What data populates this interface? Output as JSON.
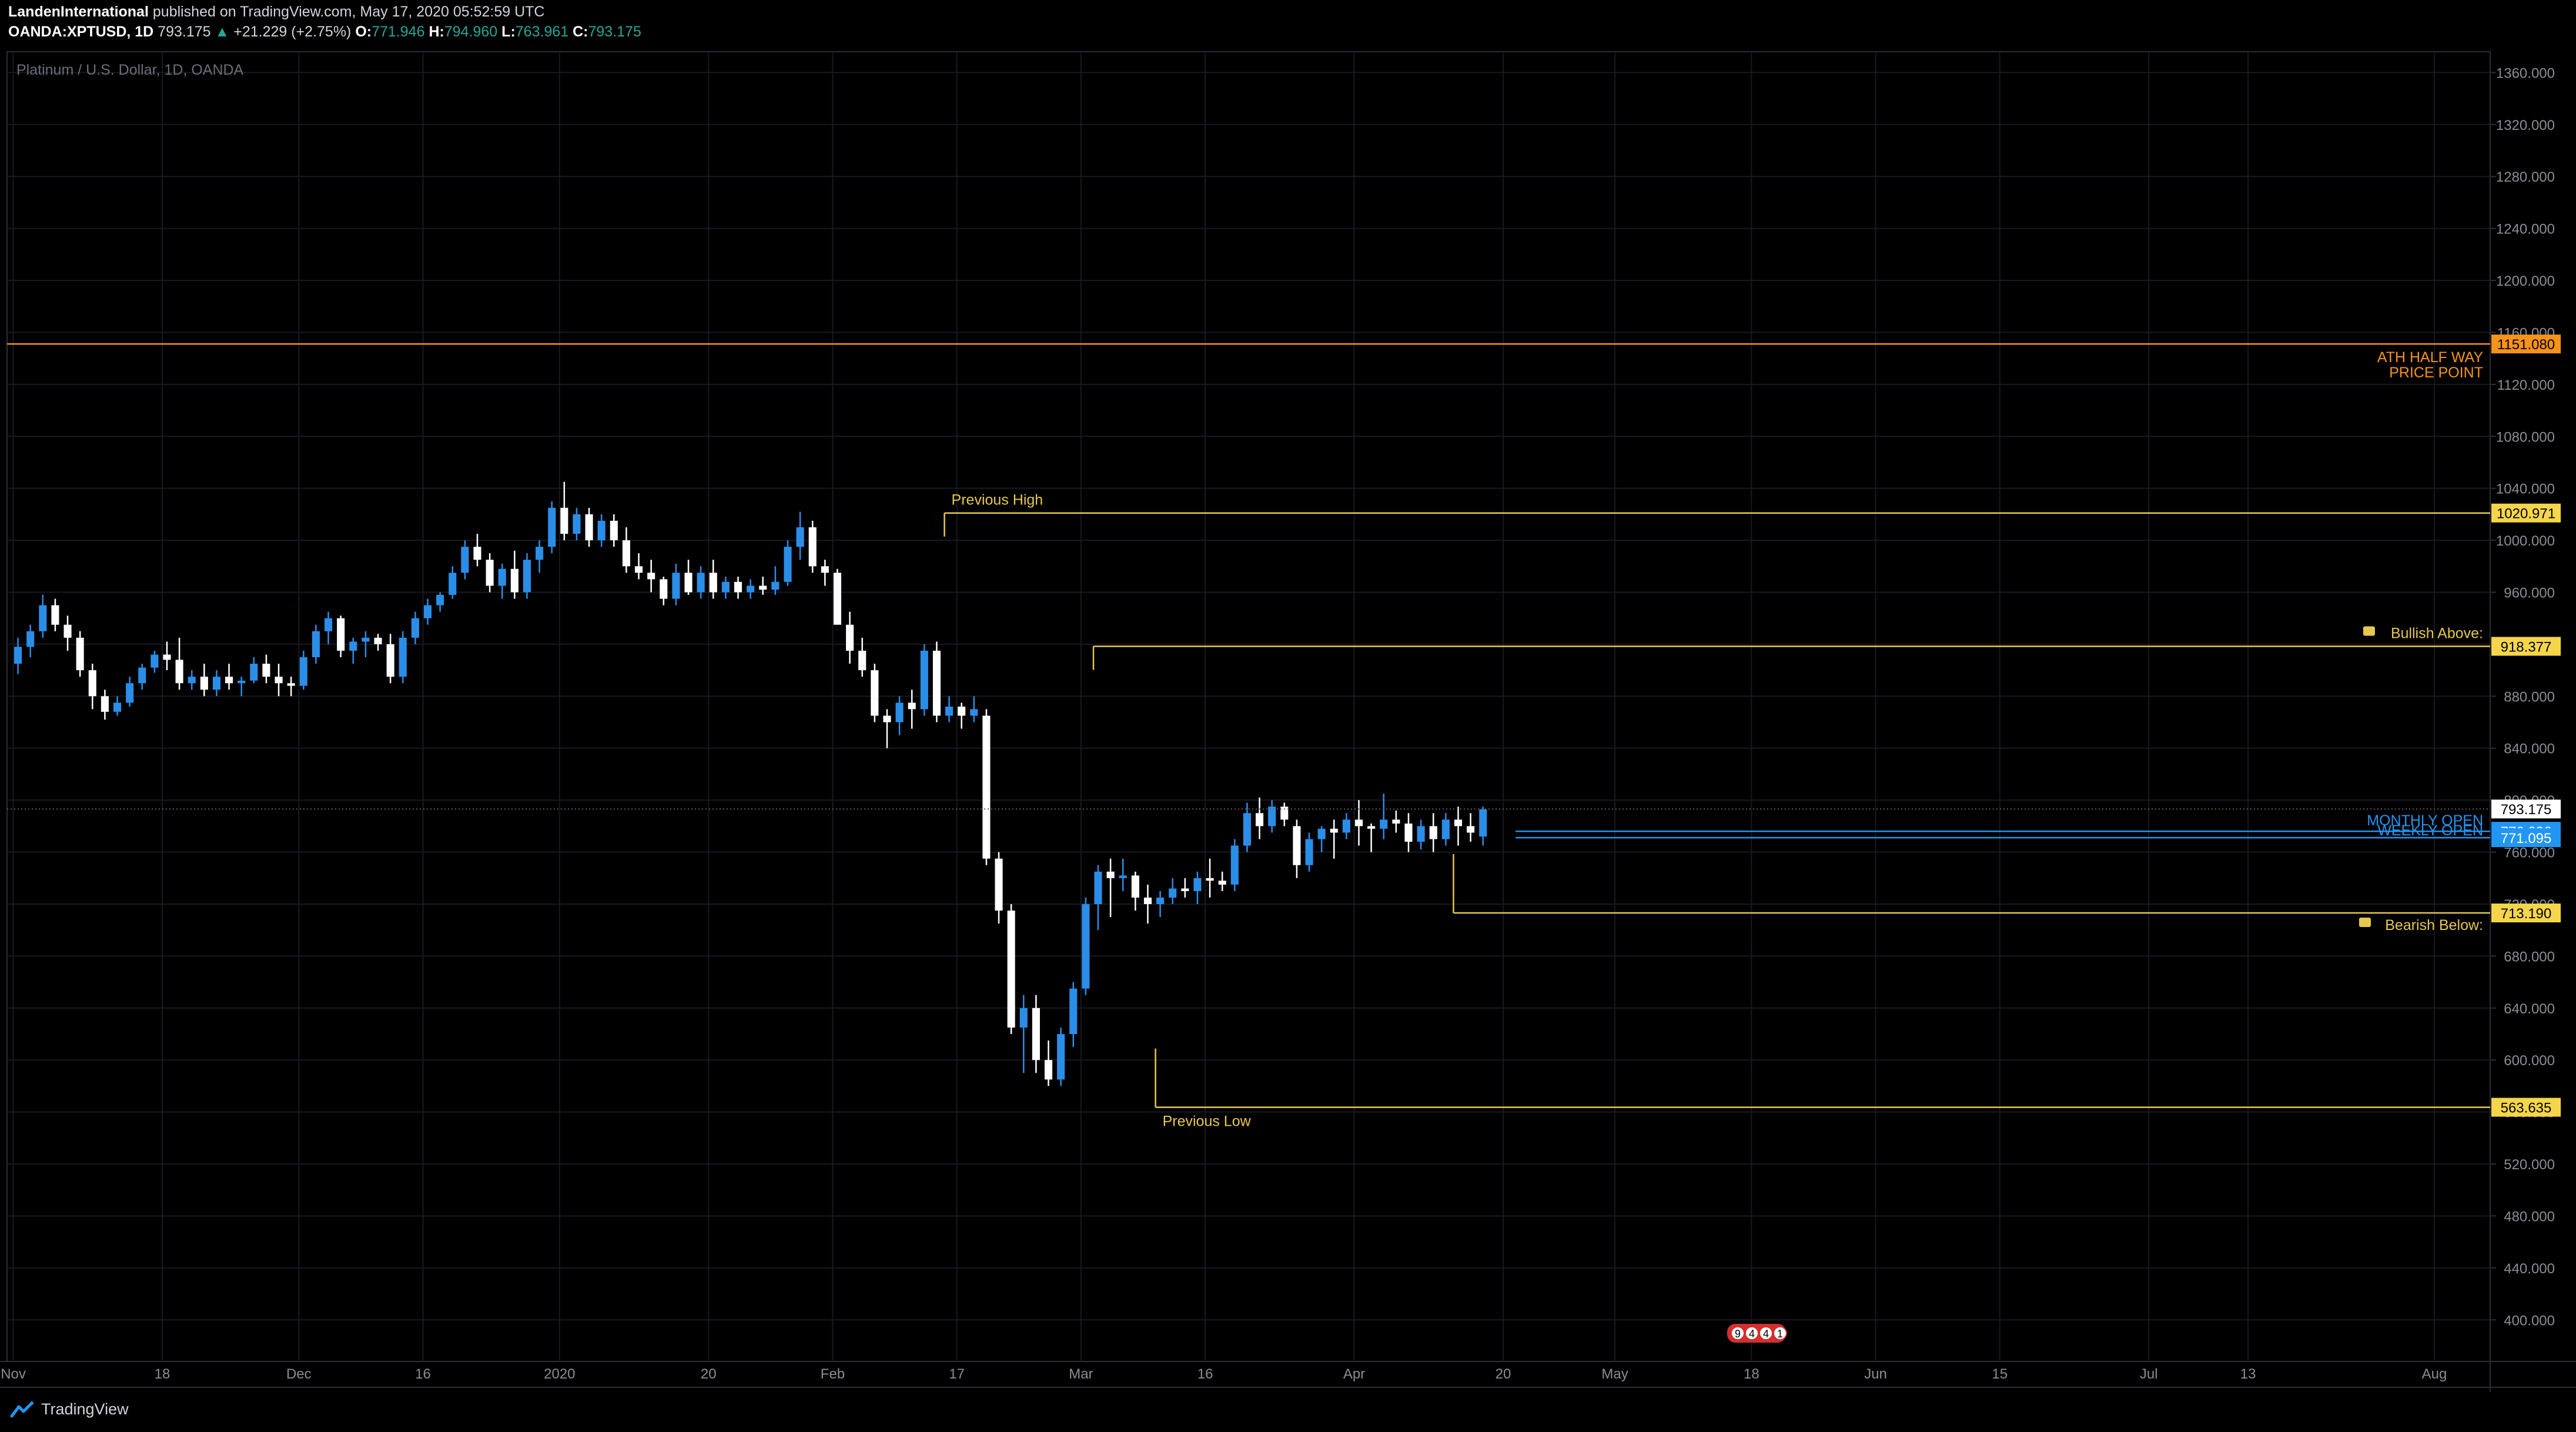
{
  "header": {
    "author": "LandenInternational",
    "published_text": "published on TradingView.com, May 17, 2020 05:52:59 UTC",
    "symbol": "OANDA:XPTUSD, 1D",
    "last": "793.175",
    "change_arrow": "▲",
    "change": "+21.229 (+2.75%)",
    "o_label": "O:",
    "o": "771.946",
    "h_label": "H:",
    "h": "794.960",
    "l_label": "L:",
    "l": "763.961",
    "c_label": "C:",
    "c": "793.175"
  },
  "footer": {
    "brand": "TradingView"
  },
  "colors": {
    "up": "#2a8ee8",
    "down": "#ffffff",
    "grid": "#171a22",
    "border": "#2a2e39",
    "text": "#8a8d96",
    "orange": "#f7931a",
    "gold": "#e6c84e",
    "blue": "#2196f3"
  },
  "chart_data": {
    "type": "candlestick",
    "title": "Platinum / U.S. Dollar, 1D, OANDA",
    "ylim": [
      368,
      1376
    ],
    "y_ticks": [
      1360,
      1320,
      1280,
      1240,
      1200,
      1160,
      1120,
      1080,
      1040,
      1000,
      960,
      920,
      880,
      840,
      800,
      760,
      720,
      680,
      640,
      600,
      560,
      520,
      480,
      440,
      400
    ],
    "y_tick_labels": [
      "1360.000",
      "1320.000",
      "1280.000",
      "1240.000",
      "1200.000",
      "1160.000",
      "1120.000",
      "1080.000",
      "1040.000",
      "1000.000",
      "960.000",
      "920.000",
      "880.000",
      "840.000",
      "800.000",
      "760.000",
      "720.000",
      "680.000",
      "640.000",
      "600.000",
      "560.000",
      "520.000",
      "480.000",
      "440.000",
      "400.000"
    ],
    "x_ticks": [
      {
        "label": "Nov",
        "bar": 0
      },
      {
        "label": "18",
        "bar": 12
      },
      {
        "label": "Dec",
        "bar": 23
      },
      {
        "label": "16",
        "bar": 33
      },
      {
        "label": "2020",
        "bar": 44
      },
      {
        "label": "20",
        "bar": 56
      },
      {
        "label": "Feb",
        "bar": 66
      },
      {
        "label": "17",
        "bar": 76
      },
      {
        "label": "Mar",
        "bar": 86
      },
      {
        "label": "16",
        "bar": 96
      },
      {
        "label": "Apr",
        "bar": 108
      },
      {
        "label": "20",
        "bar": 120
      },
      {
        "label": "May",
        "bar": 129
      },
      {
        "label": "18",
        "bar": 140
      },
      {
        "label": "Jun",
        "bar": 150
      },
      {
        "label": "15",
        "bar": 160
      },
      {
        "label": "Jul",
        "bar": 172
      },
      {
        "label": "13",
        "bar": 180
      },
      {
        "label": "Aug",
        "bar": 195
      }
    ],
    "bar_count_visible": 200,
    "candles": [
      [
        905,
        925,
        897,
        918
      ],
      [
        918,
        935,
        910,
        930
      ],
      [
        930,
        958,
        925,
        950
      ],
      [
        950,
        955,
        930,
        935
      ],
      [
        935,
        942,
        915,
        925
      ],
      [
        925,
        930,
        895,
        900
      ],
      [
        900,
        905,
        870,
        880
      ],
      [
        880,
        885,
        862,
        868
      ],
      [
        868,
        880,
        865,
        875
      ],
      [
        875,
        895,
        872,
        890
      ],
      [
        890,
        905,
        885,
        902
      ],
      [
        902,
        915,
        898,
        912
      ],
      [
        912,
        922,
        900,
        908
      ],
      [
        908,
        925,
        885,
        890
      ],
      [
        890,
        900,
        885,
        895
      ],
      [
        895,
        905,
        880,
        885
      ],
      [
        885,
        900,
        880,
        895
      ],
      [
        895,
        905,
        885,
        890
      ],
      [
        890,
        895,
        880,
        892
      ],
      [
        892,
        910,
        890,
        905
      ],
      [
        905,
        912,
        890,
        895
      ],
      [
        895,
        905,
        880,
        890
      ],
      [
        890,
        895,
        880,
        888
      ],
      [
        888,
        915,
        885,
        910
      ],
      [
        910,
        935,
        905,
        930
      ],
      [
        930,
        945,
        920,
        940
      ],
      [
        940,
        942,
        910,
        915
      ],
      [
        915,
        925,
        905,
        922
      ],
      [
        922,
        930,
        910,
        925
      ],
      [
        925,
        928,
        915,
        920
      ],
      [
        920,
        928,
        890,
        895
      ],
      [
        895,
        930,
        890,
        925
      ],
      [
        925,
        945,
        920,
        940
      ],
      [
        940,
        955,
        935,
        950
      ],
      [
        950,
        960,
        945,
        958
      ],
      [
        958,
        980,
        955,
        975
      ],
      [
        975,
        1000,
        970,
        995
      ],
      [
        995,
        1005,
        980,
        985
      ],
      [
        985,
        990,
        960,
        965
      ],
      [
        965,
        982,
        955,
        978
      ],
      [
        978,
        992,
        955,
        960
      ],
      [
        960,
        990,
        955,
        985
      ],
      [
        985,
        1000,
        975,
        995
      ],
      [
        995,
        1030,
        990,
        1025
      ],
      [
        1025,
        1045,
        1000,
        1005
      ],
      [
        1005,
        1025,
        1000,
        1020
      ],
      [
        1020,
        1025,
        995,
        1000
      ],
      [
        1000,
        1020,
        995,
        1015
      ],
      [
        1015,
        1020,
        995,
        1000
      ],
      [
        1000,
        1010,
        975,
        980
      ],
      [
        980,
        990,
        970,
        975
      ],
      [
        975,
        985,
        960,
        970
      ],
      [
        970,
        972,
        950,
        955
      ],
      [
        955,
        982,
        950,
        975
      ],
      [
        975,
        985,
        958,
        960
      ],
      [
        960,
        980,
        955,
        975
      ],
      [
        975,
        985,
        955,
        960
      ],
      [
        960,
        972,
        955,
        968
      ],
      [
        968,
        972,
        955,
        960
      ],
      [
        960,
        970,
        955,
        965
      ],
      [
        965,
        972,
        958,
        962
      ],
      [
        962,
        980,
        958,
        968
      ],
      [
        968,
        1000,
        965,
        995
      ],
      [
        995,
        1022,
        985,
        1010
      ],
      [
        1010,
        1015,
        975,
        980
      ],
      [
        980,
        985,
        965,
        975
      ],
      [
        975,
        978,
        940,
        935
      ],
      [
        935,
        945,
        905,
        915
      ],
      [
        915,
        925,
        895,
        900
      ],
      [
        900,
        905,
        860,
        865
      ],
      [
        865,
        870,
        840,
        860
      ],
      [
        860,
        880,
        850,
        875
      ],
      [
        875,
        885,
        855,
        870
      ],
      [
        870,
        920,
        865,
        915
      ],
      [
        915,
        922,
        860,
        865
      ],
      [
        865,
        880,
        860,
        872
      ],
      [
        872,
        875,
        855,
        865
      ],
      [
        865,
        880,
        860,
        870
      ],
      [
        865,
        870,
        750,
        755
      ],
      [
        755,
        760,
        705,
        715
      ],
      [
        715,
        720,
        620,
        625
      ],
      [
        625,
        650,
        590,
        640
      ],
      [
        640,
        650,
        590,
        600
      ],
      [
        600,
        615,
        580,
        585
      ],
      [
        585,
        625,
        580,
        620
      ],
      [
        620,
        660,
        610,
        655
      ],
      [
        655,
        725,
        650,
        720
      ],
      [
        720,
        750,
        700,
        745
      ],
      [
        745,
        755,
        710,
        740
      ],
      [
        740,
        755,
        730,
        742
      ],
      [
        742,
        745,
        715,
        725
      ],
      [
        725,
        735,
        705,
        720
      ],
      [
        720,
        730,
        710,
        725
      ],
      [
        725,
        740,
        720,
        732
      ],
      [
        732,
        740,
        725,
        730
      ],
      [
        730,
        745,
        720,
        740
      ],
      [
        740,
        755,
        725,
        738
      ],
      [
        738,
        745,
        730,
        735
      ],
      [
        735,
        770,
        730,
        765
      ],
      [
        765,
        798,
        760,
        790
      ],
      [
        790,
        802,
        770,
        780
      ],
      [
        780,
        800,
        775,
        795
      ],
      [
        795,
        798,
        780,
        785
      ],
      [
        780,
        785,
        740,
        750
      ],
      [
        750,
        775,
        745,
        770
      ],
      [
        770,
        780,
        760,
        778
      ],
      [
        778,
        785,
        755,
        775
      ],
      [
        775,
        790,
        770,
        785
      ],
      [
        785,
        800,
        765,
        780
      ],
      [
        780,
        782,
        760,
        778
      ],
      [
        778,
        805,
        770,
        785
      ],
      [
        785,
        792,
        775,
        782
      ],
      [
        782,
        790,
        760,
        768
      ],
      [
        768,
        785,
        762,
        780
      ],
      [
        780,
        790,
        760,
        770
      ],
      [
        770,
        790,
        765,
        785
      ],
      [
        785,
        795,
        765,
        780
      ],
      [
        780,
        790,
        768,
        775
      ],
      [
        772,
        795,
        765,
        793
      ]
    ],
    "levels": [
      {
        "name": "ATH HALF WAY PRICE POINT",
        "label_lines": [
          "ATH HALF WAY",
          "PRICE POINT"
        ],
        "price": 1151.08,
        "tag": "1151.080",
        "color": "orange",
        "from_bar": 0
      },
      {
        "name": "Previous High",
        "label_lines": [
          "Previous High"
        ],
        "price": 1020.971,
        "tag": "1020.971",
        "color": "gold",
        "from_bar": 75
      },
      {
        "name": "Bullish Above:",
        "label_lines": [
          "Bullish Above:"
        ],
        "price": 918.377,
        "tag": "918.377",
        "color": "gold",
        "from_bar": 87,
        "icon": "bull-icon"
      },
      {
        "name": "MONTHLY OPEN",
        "label_lines": [
          "MONTHLY OPEN"
        ],
        "price": 776.026,
        "tag": "776.026",
        "color": "blue",
        "from_bar": 121
      },
      {
        "name": "WEEKLY OPEN",
        "label_lines": [
          "WEEKLY OPEN"
        ],
        "price": 771.095,
        "tag": "771.095",
        "color": "blue",
        "from_bar": 121
      },
      {
        "name": "Bearish Below:",
        "label_lines": [
          "Bearish Below:"
        ],
        "price": 713.19,
        "tag": "713.190",
        "color": "gold",
        "from_bar": 116,
        "icon": "bear-icon"
      },
      {
        "name": "Previous Low",
        "label_lines": [
          "Previous Low"
        ],
        "price": 563.635,
        "tag": "563.635",
        "color": "gold",
        "from_bar": 92
      }
    ],
    "last_price": {
      "price": 793.175,
      "tag": "793.175"
    },
    "event_markers": [
      "9",
      "4",
      "4",
      "1"
    ]
  }
}
